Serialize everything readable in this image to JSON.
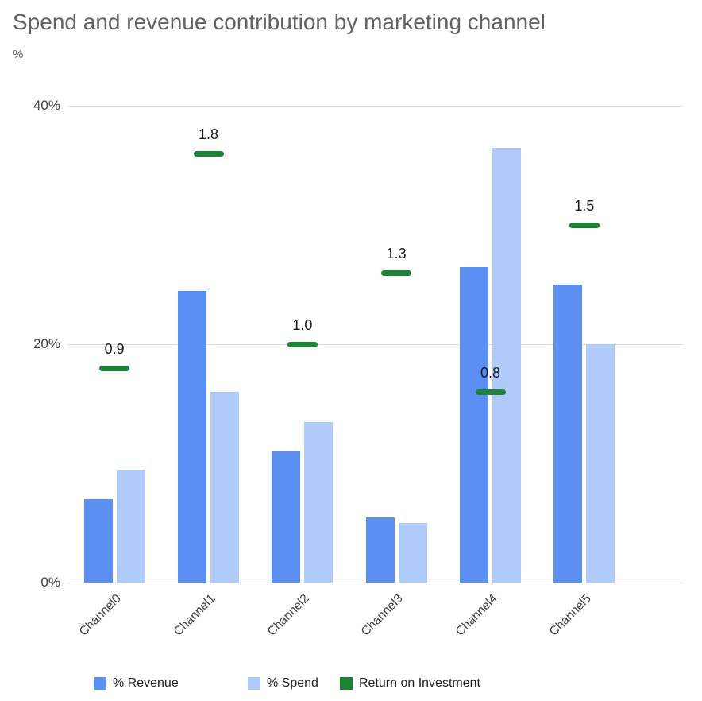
{
  "title": "Spend and revenue contribution by marketing channel",
  "axis_unit": "%",
  "chart_data": {
    "type": "bar",
    "title": "Spend and revenue contribution by marketing channel",
    "xlabel": "",
    "ylabel": "%",
    "ylim": [
      0,
      40
    ],
    "grid": true,
    "legend_position": "bottom",
    "categories": [
      "Channel0",
      "Channel1",
      "Channel2",
      "Channel3",
      "Channel4",
      "Channel5"
    ],
    "yticks": [
      {
        "label": "0%",
        "value": 0
      },
      {
        "label": "20%",
        "value": 20
      },
      {
        "label": "40%",
        "value": 40
      }
    ],
    "series": [
      {
        "name": "% Revenue",
        "color": "#5b8ff2",
        "values": [
          7,
          24.5,
          11,
          5.5,
          26.5,
          25
        ]
      },
      {
        "name": "% Spend",
        "color": "#b0cbf9",
        "values": [
          9.5,
          16,
          13.5,
          5,
          36.5,
          20
        ]
      }
    ],
    "roi_series": {
      "name": "Return on Investment",
      "color": "#1e8239",
      "axis_max": 2.0,
      "values": [
        0.9,
        1.8,
        1.0,
        1.3,
        0.8,
        1.5
      ],
      "labels": [
        "0.9",
        "1.8",
        "1.0",
        "1.3",
        "0.8",
        "1.5"
      ]
    }
  }
}
